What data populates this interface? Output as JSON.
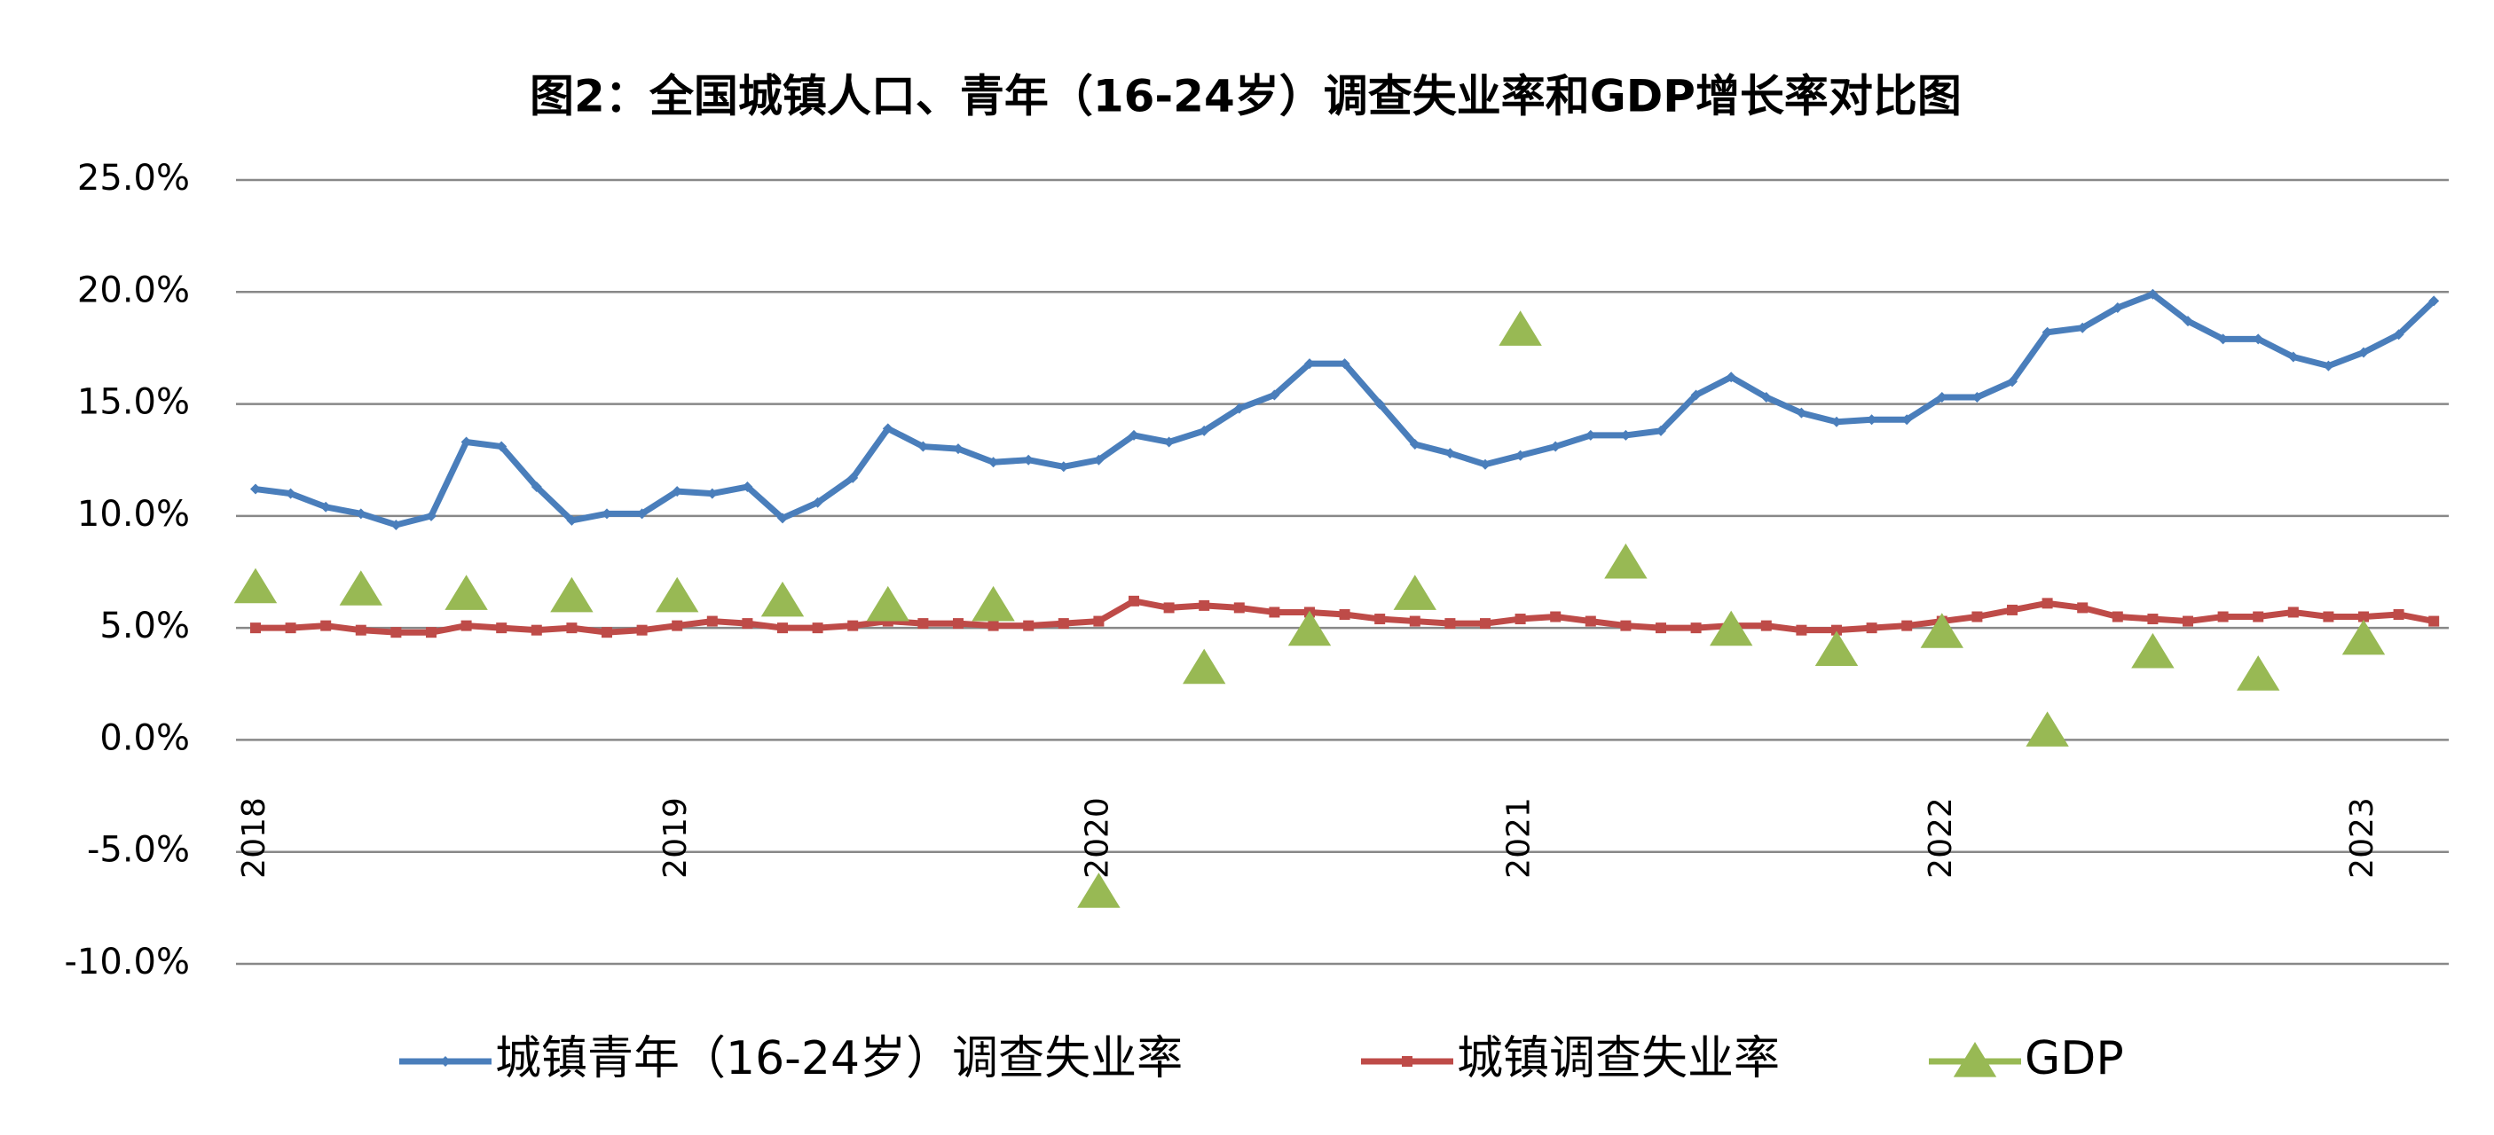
{
  "chart_data": {
    "type": "line",
    "title": "图2：全国城镇人口、青年（16-24岁）调查失业率和GDP增长率对比图",
    "categories": [
      "2018",
      null,
      null,
      null,
      null,
      null,
      null,
      null,
      null,
      null,
      null,
      null,
      "2019",
      null,
      null,
      null,
      null,
      null,
      null,
      null,
      null,
      null,
      null,
      null,
      "2020",
      null,
      null,
      null,
      null,
      null,
      null,
      null,
      null,
      null,
      null,
      null,
      "2021",
      null,
      null,
      null,
      null,
      null,
      null,
      null,
      null,
      null,
      null,
      null,
      "2022",
      null,
      null,
      null,
      null,
      null,
      null,
      null,
      null,
      null,
      null,
      null,
      "2023",
      null,
      null
    ],
    "series": [
      {
        "name": "城镇青年（16-24岁）调查失业率",
        "color": "#4a7ebb",
        "marker": "diamond",
        "values": [
          11.2,
          11.0,
          10.4,
          10.1,
          9.6,
          10.0,
          13.3,
          13.1,
          11.3,
          9.8,
          10.1,
          10.1,
          11.1,
          11.0,
          11.3,
          9.9,
          10.6,
          11.7,
          13.9,
          13.1,
          13.0,
          12.4,
          12.5,
          12.2,
          12.5,
          13.6,
          13.3,
          13.8,
          14.8,
          15.4,
          16.8,
          16.8,
          15.0,
          13.2,
          12.8,
          12.3,
          12.7,
          13.1,
          13.6,
          13.6,
          13.8,
          15.4,
          16.2,
          15.3,
          14.6,
          14.2,
          14.3,
          14.3,
          15.3,
          15.3,
          16.0,
          18.2,
          18.4,
          19.3,
          19.9,
          18.7,
          17.9,
          17.9,
          17.1,
          16.7,
          17.3,
          18.1,
          19.6
        ]
      },
      {
        "name": "城镇调查失业率",
        "color": "#be4b48",
        "marker": "square",
        "values": [
          5.0,
          5.0,
          5.1,
          4.9,
          4.8,
          4.8,
          5.1,
          5.0,
          4.9,
          5.0,
          4.8,
          4.9,
          5.1,
          5.3,
          5.2,
          5.0,
          5.0,
          5.1,
          5.3,
          5.2,
          5.2,
          5.1,
          5.1,
          5.2,
          5.3,
          6.2,
          5.9,
          6.0,
          5.9,
          5.7,
          5.7,
          5.6,
          5.4,
          5.3,
          5.2,
          5.2,
          5.4,
          5.5,
          5.3,
          5.1,
          5.0,
          5.0,
          5.1,
          5.1,
          4.9,
          4.9,
          5.0,
          5.1,
          5.3,
          5.5,
          5.8,
          6.1,
          5.9,
          5.5,
          5.4,
          5.3,
          5.5,
          5.5,
          5.7,
          5.5,
          5.5,
          5.6,
          5.3
        ]
      },
      {
        "name": "GDP",
        "color": "#98b954",
        "marker": "triangle",
        "line": false,
        "values": [
          6.8,
          null,
          null,
          6.7,
          null,
          null,
          6.5,
          null,
          null,
          6.4,
          null,
          null,
          6.4,
          null,
          null,
          6.2,
          null,
          null,
          6.0,
          null,
          null,
          6.0,
          null,
          null,
          -6.8,
          null,
          null,
          3.2,
          null,
          null,
          4.9,
          null,
          null,
          6.5,
          null,
          null,
          18.3,
          null,
          null,
          7.9,
          null,
          null,
          4.9,
          null,
          null,
          4.0,
          null,
          null,
          4.8,
          null,
          null,
          0.4,
          null,
          null,
          3.9,
          null,
          null,
          2.9,
          null,
          null,
          4.5,
          null,
          null
        ]
      }
    ],
    "ylim": [
      -10,
      25
    ],
    "yticks": [
      {
        "value": -10,
        "label": "-10.0%"
      },
      {
        "value": -5,
        "label": "-5.0%"
      },
      {
        "value": 0,
        "label": "0.0%"
      },
      {
        "value": 5,
        "label": "5.0%"
      },
      {
        "value": 10,
        "label": "10.0%"
      },
      {
        "value": 15,
        "label": "15.0%"
      },
      {
        "value": 20,
        "label": "20.0%"
      },
      {
        "value": 25,
        "label": "25.0%"
      }
    ],
    "grid": true,
    "legend": "bottom"
  }
}
